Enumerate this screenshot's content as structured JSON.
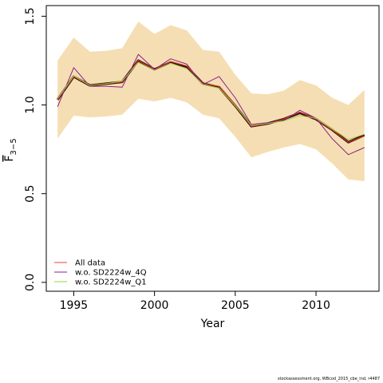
{
  "chart_data": {
    "type": "line",
    "xlabel": "Year",
    "ylabel_main": "F",
    "ylabel_sub": "3−5",
    "xlim": [
      1993.3,
      2013.9
    ],
    "ylim": [
      -0.05,
      1.56
    ],
    "xticks": [
      1995,
      2000,
      2005,
      2010
    ],
    "yticks": [
      0.0,
      0.5,
      1.0,
      1.5
    ],
    "ytick_labels": [
      "0.0",
      "0.5",
      "1.0",
      "1.5"
    ],
    "x": [
      1994,
      1995,
      1996,
      1997,
      1998,
      1999,
      2000,
      2001,
      2002,
      2003,
      2004,
      2005,
      2006,
      2007,
      2008,
      2009,
      2010,
      2011,
      2012,
      2013
    ],
    "band": {
      "color": "#f5deb3",
      "lower": [
        0.81,
        0.94,
        0.93,
        0.935,
        0.945,
        1.035,
        1.02,
        1.04,
        1.015,
        0.945,
        0.925,
        0.82,
        0.705,
        0.735,
        0.76,
        0.78,
        0.75,
        0.67,
        0.58,
        0.57
      ],
      "upper": [
        1.25,
        1.38,
        1.3,
        1.305,
        1.32,
        1.47,
        1.4,
        1.45,
        1.42,
        1.31,
        1.3,
        1.17,
        1.065,
        1.06,
        1.08,
        1.14,
        1.11,
        1.04,
        1.0,
        1.085
      ]
    },
    "series": [
      {
        "name": "All data",
        "color": "#e8403a",
        "values": [
          1.03,
          1.16,
          1.11,
          1.12,
          1.13,
          1.25,
          1.2,
          1.245,
          1.22,
          1.12,
          1.105,
          1.0,
          0.88,
          0.895,
          0.92,
          0.96,
          0.92,
          0.86,
          0.79,
          0.825
        ]
      },
      {
        "name": "w.o. SD2224w_4Q",
        "color": "#8b1f8b",
        "values": [
          0.99,
          1.21,
          1.105,
          1.105,
          1.1,
          1.285,
          1.2,
          1.26,
          1.23,
          1.115,
          1.16,
          1.04,
          0.89,
          0.9,
          0.91,
          0.97,
          0.925,
          0.81,
          0.72,
          0.76
        ]
      },
      {
        "name": "w.o. SD2224w_Q1",
        "color": "#9ad438",
        "values": [
          1.035,
          1.165,
          1.11,
          1.12,
          1.135,
          1.24,
          1.195,
          1.235,
          1.205,
          1.115,
          1.095,
          0.995,
          0.885,
          0.895,
          0.91,
          0.94,
          0.925,
          0.865,
          0.805,
          0.835
        ]
      }
    ],
    "bold_line": {
      "color": "#3a0e0e",
      "values": [
        1.03,
        1.16,
        1.11,
        1.12,
        1.13,
        1.25,
        1.2,
        1.24,
        1.215,
        1.12,
        1.1,
        0.995,
        0.88,
        0.895,
        0.92,
        0.955,
        0.92,
        0.86,
        0.79,
        0.83
      ]
    },
    "legend": {
      "placement": "bottom-left",
      "labels": [
        "All data",
        "w.o. SD2224w_4Q",
        "w.o. SD2224w_Q1"
      ]
    },
    "grid": false
  },
  "footer": "stockassessment.org, WBcod_2015_cbe_ind, r4487"
}
